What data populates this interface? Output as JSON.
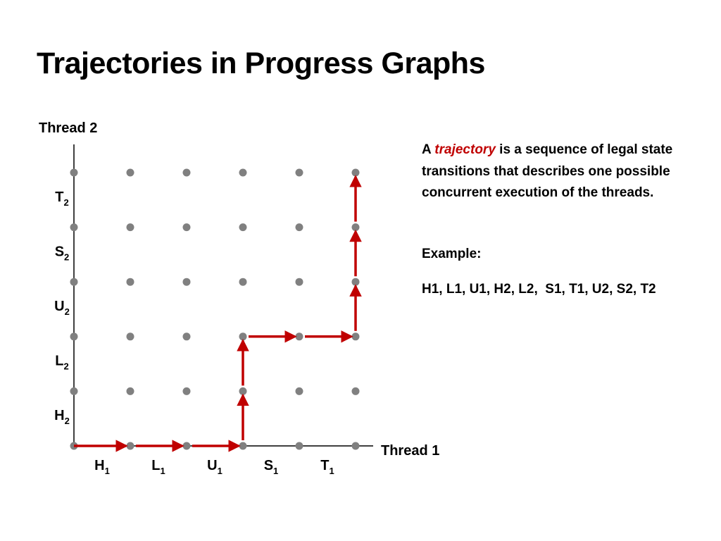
{
  "title": "Trajectories in Progress Graphs",
  "axes": {
    "y_label": "Thread 2",
    "x_label": "Thread 1",
    "x_ticks": [
      {
        "base": "H",
        "sub": "1"
      },
      {
        "base": "L",
        "sub": "1"
      },
      {
        "base": "U",
        "sub": "1"
      },
      {
        "base": "S",
        "sub": "1"
      },
      {
        "base": "T",
        "sub": "1"
      }
    ],
    "y_ticks": [
      {
        "base": "H",
        "sub": "2"
      },
      {
        "base": "L",
        "sub": "2"
      },
      {
        "base": "U",
        "sub": "2"
      },
      {
        "base": "S",
        "sub": "2"
      },
      {
        "base": "T",
        "sub": "2"
      }
    ]
  },
  "grid": {
    "columns": 6,
    "rows": 6,
    "dot_color": "#808080"
  },
  "trajectory": {
    "color": "#c00000",
    "path": [
      [
        0,
        0
      ],
      [
        1,
        0
      ],
      [
        2,
        0
      ],
      [
        3,
        0
      ],
      [
        3,
        1
      ],
      [
        3,
        2
      ],
      [
        4,
        2
      ],
      [
        5,
        2
      ],
      [
        5,
        3
      ],
      [
        5,
        4
      ],
      [
        5,
        5
      ]
    ]
  },
  "description": {
    "prefix": "A ",
    "highlight": "trajectory",
    "suffix": " is a sequence of legal state transitions that describes one possible concurrent execution of the threads."
  },
  "example": {
    "label": "Example:",
    "sequence": "H1, L1, U1, H2, L2,  S1, T1, U2, S2, T2"
  }
}
